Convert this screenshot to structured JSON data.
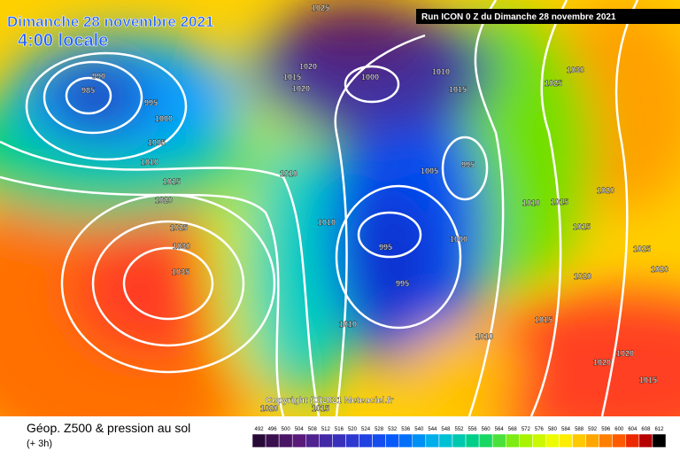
{
  "header": {
    "title": "Dimanche 28 novembre 2021",
    "time": "4:00 locale",
    "run": "Run ICON 0 Z du Dimanche 28 novembre 2021"
  },
  "footer": {
    "title": "Géop. Z500 & pression au sol",
    "step": "(+ 3h)",
    "copyright": "Copyright (C)2021 Meteociel.fr"
  },
  "colorbar": [
    492,
    496,
    500,
    504,
    508,
    512,
    516,
    520,
    524,
    528,
    532,
    536,
    540,
    544,
    548,
    552,
    556,
    560,
    564,
    568,
    572,
    576,
    580,
    584,
    588,
    592,
    596,
    600,
    604,
    608,
    612
  ],
  "isobars": [
    985,
    990,
    995,
    1000,
    1005,
    1010,
    1015,
    1020,
    1025,
    1030,
    1035,
    1020,
    1015,
    1020,
    1025,
    1000,
    1010,
    1015,
    1030,
    1025,
    995,
    1005,
    1010,
    1010,
    995,
    1000,
    995,
    1010,
    1010,
    1015,
    1020,
    1015,
    1020,
    1020,
    1025,
    1015,
    1010,
    1020,
    1020,
    1015,
    1015,
    1020
  ]
}
